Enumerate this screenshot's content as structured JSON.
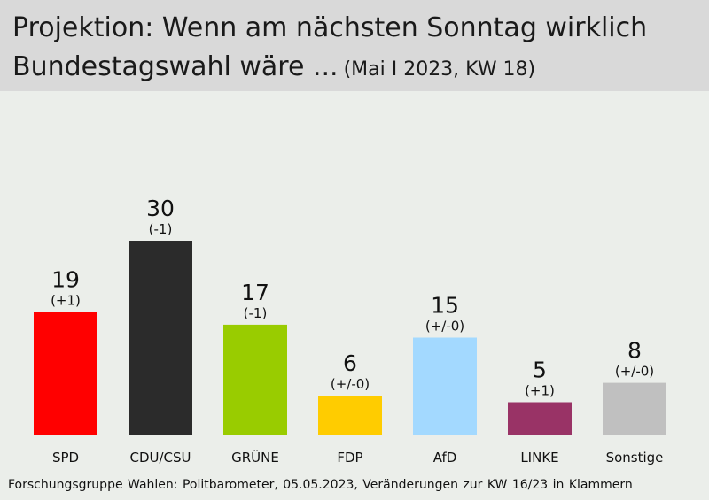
{
  "header": {
    "title_line1": "Projektion: Wenn am nächsten Sonntag wirklich",
    "title_line2": "Bundestagswahl wäre ...",
    "subtitle": "(Mai I 2023, KW 18)"
  },
  "source": "Forschungsgruppe Wahlen: Politbarometer, 05.05.2023, Veränderungen zur KW 16/23 in Klammern",
  "chart_data": {
    "type": "bar",
    "title": "Projektion: Wenn am nächsten Sonntag wirklich Bundestagswahl wäre ...",
    "subtitle": "(Mai I 2023, KW 18)",
    "categories": [
      "SPD",
      "CDU/CSU",
      "GRÜNE",
      "FDP",
      "AfD",
      "LINKE",
      "Sonstige"
    ],
    "values": [
      19,
      30,
      17,
      6,
      15,
      5,
      8
    ],
    "changes": [
      "(+1)",
      "(-1)",
      "(-1)",
      "(+/-0)",
      "(+/-0)",
      "(+1)",
      "(+/-0)"
    ],
    "colors": [
      "#ff0000",
      "#2b2b2b",
      "#99cc00",
      "#ffcc00",
      "#a3d9ff",
      "#993366",
      "#c0c0c0"
    ],
    "xlabel": "",
    "ylabel": "",
    "ylim": [
      0,
      30
    ],
    "grid": false,
    "legend": "none"
  }
}
